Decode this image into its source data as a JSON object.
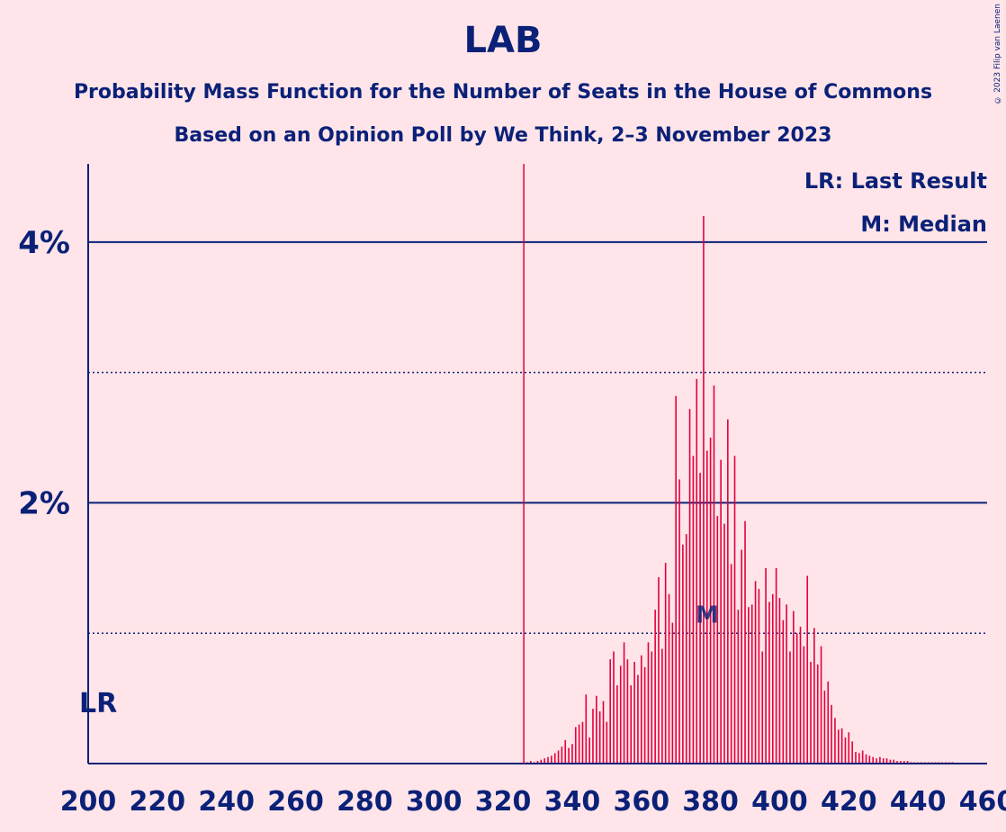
{
  "title": "LAB",
  "subtitle1": "Probability Mass Function for the Number of Seats in the House of Commons",
  "subtitle2": "Based on an Opinion Poll by We Think, 2–3 November 2023",
  "copyright": "© 2023 Filip van Laenen",
  "legend": {
    "lr": "LR: Last Result",
    "m": "M: Median"
  },
  "lr_marker": "LR",
  "median_marker": "M",
  "colors": {
    "background": "#FFE5E9",
    "axis": "#0B2178",
    "bars": "#E4003B",
    "lastResult": "#E4003B"
  },
  "chart_data": {
    "type": "bar",
    "xlim": [
      200,
      460
    ],
    "ylim": [
      0,
      4.6
    ],
    "xticks": [
      200,
      220,
      240,
      260,
      280,
      300,
      320,
      340,
      360,
      380,
      400,
      420,
      440,
      460
    ],
    "yticks": [
      {
        "value": 2,
        "label": "2%"
      },
      {
        "value": 4,
        "label": "4%"
      }
    ],
    "minor_yticks": [
      1,
      3
    ],
    "last_result": 326,
    "median": 379,
    "x": [
      326,
      327,
      328,
      329,
      330,
      331,
      332,
      333,
      334,
      335,
      336,
      337,
      338,
      339,
      340,
      341,
      342,
      343,
      344,
      345,
      346,
      347,
      348,
      349,
      350,
      351,
      352,
      353,
      354,
      355,
      356,
      357,
      358,
      359,
      360,
      361,
      362,
      363,
      364,
      365,
      366,
      367,
      368,
      369,
      370,
      371,
      372,
      373,
      374,
      375,
      376,
      377,
      378,
      379,
      380,
      381,
      382,
      383,
      384,
      385,
      386,
      387,
      388,
      389,
      390,
      391,
      392,
      393,
      394,
      395,
      396,
      397,
      398,
      399,
      400,
      401,
      402,
      403,
      404,
      405,
      406,
      407,
      408,
      409,
      410,
      411,
      412,
      413,
      414,
      415,
      416,
      417,
      418,
      419,
      420,
      421,
      422,
      423,
      424,
      425,
      426,
      427,
      428,
      429,
      430,
      431,
      432,
      433,
      434,
      435,
      436,
      437,
      438,
      439,
      440,
      441,
      442,
      443,
      444,
      445,
      446,
      447,
      448,
      449,
      450
    ],
    "values": [
      0.01,
      0.01,
      0.02,
      0.01,
      0.02,
      0.03,
      0.04,
      0.05,
      0.06,
      0.08,
      0.1,
      0.13,
      0.18,
      0.12,
      0.15,
      0.28,
      0.3,
      0.32,
      0.53,
      0.2,
      0.42,
      0.52,
      0.4,
      0.48,
      0.32,
      0.8,
      0.86,
      0.6,
      0.75,
      0.93,
      0.8,
      0.6,
      0.78,
      0.68,
      0.83,
      0.74,
      0.93,
      0.86,
      1.18,
      1.43,
      0.88,
      1.54,
      1.3,
      1.08,
      2.82,
      2.18,
      1.68,
      1.76,
      2.72,
      2.36,
      2.95,
      2.23,
      4.2,
      2.4,
      2.5,
      2.9,
      1.9,
      2.33,
      1.84,
      2.64,
      1.53,
      2.36,
      1.18,
      1.64,
      1.86,
      1.2,
      1.22,
      1.4,
      1.34,
      0.86,
      1.5,
      1.24,
      1.3,
      1.5,
      1.27,
      1.1,
      1.22,
      0.86,
      1.17,
      1.0,
      1.05,
      0.9,
      1.44,
      0.78,
      1.04,
      0.76,
      0.9,
      0.56,
      0.63,
      0.45,
      0.35,
      0.26,
      0.27,
      0.2,
      0.24,
      0.17,
      0.09,
      0.08,
      0.1,
      0.07,
      0.06,
      0.05,
      0.04,
      0.05,
      0.04,
      0.04,
      0.03,
      0.03,
      0.02,
      0.02,
      0.02,
      0.02,
      0.01,
      0.01,
      0.01,
      0.01,
      0.01,
      0.01,
      0.01,
      0.01,
      0.01,
      0.01,
      0.01,
      0.01,
      0.01
    ]
  }
}
